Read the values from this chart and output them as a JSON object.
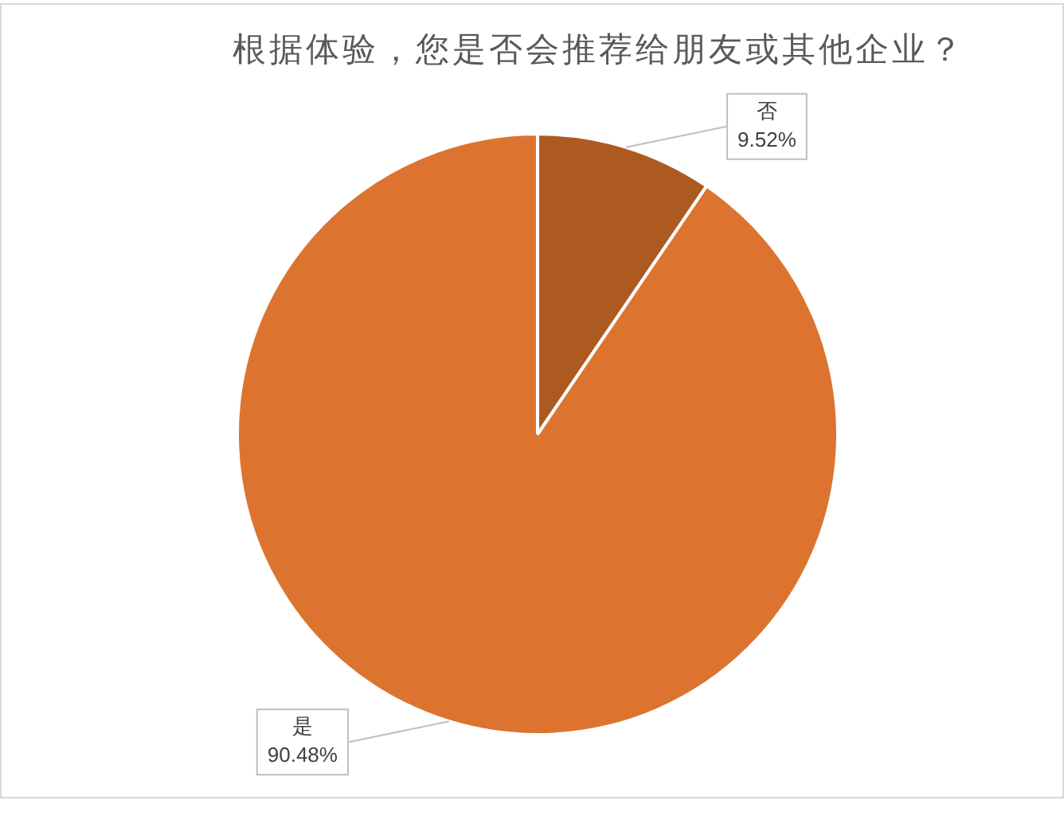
{
  "chart_data": {
    "type": "pie",
    "title": "根据体验，您是否会推荐给朋友或其他企业？",
    "categories": [
      "否",
      "是"
    ],
    "values": [
      9.52,
      90.48
    ],
    "colors": [
      "#ad5a21",
      "#dc7430"
    ],
    "value_labels": [
      "9.52%",
      "90.48%"
    ]
  }
}
